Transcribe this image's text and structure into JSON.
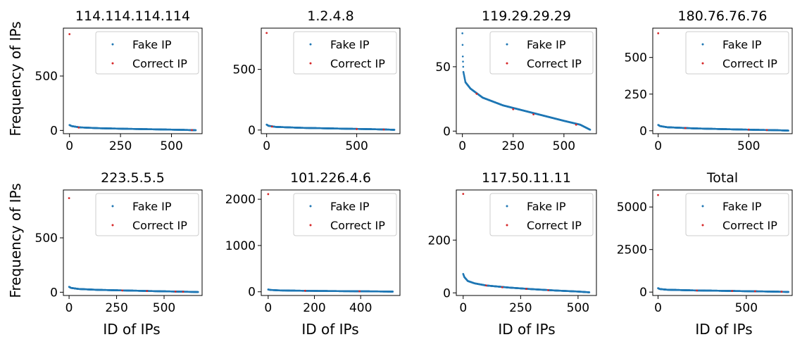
{
  "figure": {
    "ylabel": "Frequency of IPs",
    "xlabel": "ID of IPs",
    "legend": [
      "Fake IP",
      "Correct IP"
    ],
    "colors": {
      "fake": "#1f77b4",
      "correct": "#d62728"
    }
  },
  "chart_data": [
    {
      "type": "scatter",
      "title": "114.114.114.114",
      "legend_position": "top-right",
      "xlim": [
        -30,
        650
      ],
      "ylim": [
        -30,
        940
      ],
      "xticks": [
        0,
        250,
        500
      ],
      "yticks": [
        0,
        500
      ],
      "n": 620,
      "fake_curve": [
        [
          0,
          50
        ],
        [
          10,
          40
        ],
        [
          50,
          28
        ],
        [
          150,
          20
        ],
        [
          300,
          14
        ],
        [
          450,
          9
        ],
        [
          560,
          5
        ],
        [
          620,
          2
        ]
      ],
      "correct_points": [
        [
          0,
          885
        ],
        [
          45,
          26
        ],
        [
          600,
          3
        ]
      ]
    },
    {
      "type": "scatter",
      "title": "1.2.4.8",
      "legend_position": "top-right",
      "xlim": [
        -30,
        740
      ],
      "ylim": [
        -30,
        840
      ],
      "xticks": [
        0,
        500
      ],
      "yticks": [
        0,
        500
      ],
      "n": 710,
      "fake_curve": [
        [
          0,
          45
        ],
        [
          10,
          35
        ],
        [
          50,
          26
        ],
        [
          200,
          18
        ],
        [
          400,
          12
        ],
        [
          550,
          8
        ],
        [
          650,
          5
        ],
        [
          710,
          2
        ]
      ],
      "correct_points": [
        [
          0,
          800
        ],
        [
          30,
          28
        ],
        [
          500,
          8
        ],
        [
          650,
          4
        ]
      ]
    },
    {
      "type": "scatter",
      "title": "119.29.29.29",
      "legend_position": "top-right",
      "xlim": [
        -30,
        660
      ],
      "ylim": [
        -2,
        80
      ],
      "xticks": [
        0,
        250,
        500
      ],
      "yticks": [
        0,
        50
      ],
      "n": 630,
      "fake_curve": [
        [
          0,
          76
        ],
        [
          2,
          58
        ],
        [
          5,
          46
        ],
        [
          15,
          38
        ],
        [
          40,
          33
        ],
        [
          100,
          26
        ],
        [
          200,
          20
        ],
        [
          300,
          16
        ],
        [
          400,
          12
        ],
        [
          500,
          8
        ],
        [
          580,
          5
        ],
        [
          630,
          1
        ]
      ],
      "correct_points": [
        [
          70,
          29
        ],
        [
          250,
          17
        ],
        [
          350,
          13
        ],
        [
          560,
          5
        ]
      ]
    },
    {
      "type": "scatter",
      "title": "180.76.76.76",
      "legend_position": "top-right",
      "xlim": [
        -30,
        740
      ],
      "ylim": [
        -20,
        700
      ],
      "xticks": [
        0,
        500
      ],
      "yticks": [
        0,
        250,
        500
      ],
      "n": 720,
      "fake_curve": [
        [
          0,
          40
        ],
        [
          10,
          32
        ],
        [
          50,
          24
        ],
        [
          200,
          16
        ],
        [
          400,
          10
        ],
        [
          550,
          6
        ],
        [
          650,
          4
        ],
        [
          720,
          1
        ]
      ],
      "correct_points": [
        [
          0,
          665
        ],
        [
          150,
          18
        ],
        [
          500,
          8
        ],
        [
          600,
          5
        ]
      ]
    },
    {
      "type": "scatter",
      "title": "223.5.5.5",
      "legend_position": "top-right",
      "xlim": [
        -30,
        700
      ],
      "ylim": [
        -30,
        940
      ],
      "xticks": [
        0,
        250,
        500
      ],
      "yticks": [
        0,
        500
      ],
      "n": 680,
      "fake_curve": [
        [
          0,
          50
        ],
        [
          10,
          40
        ],
        [
          50,
          30
        ],
        [
          150,
          22
        ],
        [
          300,
          16
        ],
        [
          450,
          10
        ],
        [
          600,
          5
        ],
        [
          680,
          2
        ]
      ],
      "correct_points": [
        [
          0,
          865
        ],
        [
          280,
          16
        ],
        [
          410,
          11
        ],
        [
          560,
          6
        ],
        [
          600,
          4
        ]
      ]
    },
    {
      "type": "scatter",
      "title": "101.226.4.6",
      "legend_position": "top-right",
      "xlim": [
        -30,
        570
      ],
      "ylim": [
        -80,
        2200
      ],
      "xticks": [
        0,
        200,
        400
      ],
      "yticks": [
        0,
        1000,
        2000
      ],
      "n": 540,
      "fake_curve": [
        [
          0,
          50
        ],
        [
          10,
          40
        ],
        [
          50,
          30
        ],
        [
          150,
          22
        ],
        [
          300,
          15
        ],
        [
          450,
          9
        ],
        [
          540,
          4
        ]
      ],
      "correct_points": [
        [
          0,
          2110
        ],
        [
          160,
          22
        ],
        [
          395,
          11
        ]
      ]
    },
    {
      "type": "scatter",
      "title": "117.50.11.11",
      "legend_position": "top-right",
      "xlim": [
        -30,
        580
      ],
      "ylim": [
        -10,
        390
      ],
      "xticks": [
        0,
        250,
        500
      ],
      "yticks": [
        0,
        200
      ],
      "n": 550,
      "fake_curve": [
        [
          0,
          72
        ],
        [
          5,
          60
        ],
        [
          20,
          45
        ],
        [
          50,
          36
        ],
        [
          100,
          28
        ],
        [
          200,
          20
        ],
        [
          300,
          14
        ],
        [
          400,
          9
        ],
        [
          500,
          5
        ],
        [
          550,
          2
        ]
      ],
      "correct_points": [
        [
          0,
          375
        ],
        [
          100,
          28
        ],
        [
          170,
          21
        ],
        [
          275,
          15
        ],
        [
          370,
          10
        ]
      ]
    },
    {
      "type": "scatter",
      "title": "Total",
      "legend_position": "top-right",
      "xlim": [
        -30,
        760
      ],
      "ylim": [
        -200,
        6000
      ],
      "xticks": [
        0,
        500
      ],
      "yticks": [
        0,
        2500,
        5000
      ],
      "n": 740,
      "fake_curve": [
        [
          0,
          230
        ],
        [
          10,
          180
        ],
        [
          50,
          140
        ],
        [
          200,
          100
        ],
        [
          400,
          70
        ],
        [
          550,
          45
        ],
        [
          650,
          30
        ],
        [
          740,
          10
        ]
      ],
      "correct_points": [
        [
          0,
          5700
        ],
        [
          220,
          95
        ],
        [
          420,
          65
        ],
        [
          550,
          45
        ],
        [
          700,
          20
        ]
      ]
    }
  ]
}
